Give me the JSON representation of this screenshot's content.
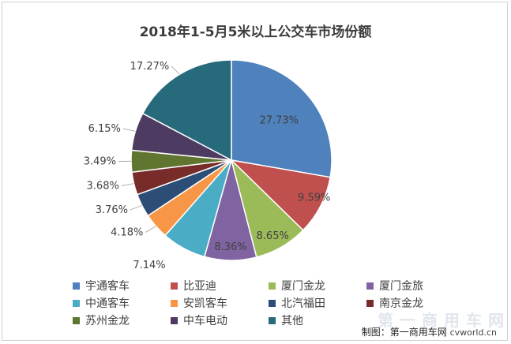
{
  "chart_data": {
    "type": "pie",
    "title": "2018年1-5月5米以上公交车市场份额",
    "legend_position": "bottom",
    "slices": [
      {
        "name": "宇通客车",
        "value": 27.73,
        "label": "27.73%",
        "color": "#4f81bd"
      },
      {
        "name": "比亚迪",
        "value": 9.59,
        "label": "9.59%",
        "color": "#c0504d"
      },
      {
        "name": "厦门金龙",
        "value": 8.65,
        "label": "8.65%",
        "color": "#9bbb59"
      },
      {
        "name": "厦门金旅",
        "value": 8.36,
        "label": "8.36%",
        "color": "#8064a2"
      },
      {
        "name": "中通客车",
        "value": 7.14,
        "label": "7.14%",
        "color": "#4bacc6"
      },
      {
        "name": "安凯客车",
        "value": 4.18,
        "label": "4.18%",
        "color": "#f79646"
      },
      {
        "name": "北汽福田",
        "value": 3.76,
        "label": "3.76%",
        "color": "#2c4d75"
      },
      {
        "name": "南京金龙",
        "value": 3.68,
        "label": "3.68%",
        "color": "#772c2a"
      },
      {
        "name": "苏州金龙",
        "value": 3.49,
        "label": "3.49%",
        "color": "#5f7530"
      },
      {
        "name": "中车电动",
        "value": 6.15,
        "label": "6.15%",
        "color": "#4d3b62"
      },
      {
        "name": "其他",
        "value": 17.27,
        "label": "17.27%",
        "color": "#276a7c"
      }
    ]
  },
  "credit": {
    "text": "制图：第一商用车网",
    "domain": "cvworld.cn"
  },
  "watermark": "第一商用车网"
}
